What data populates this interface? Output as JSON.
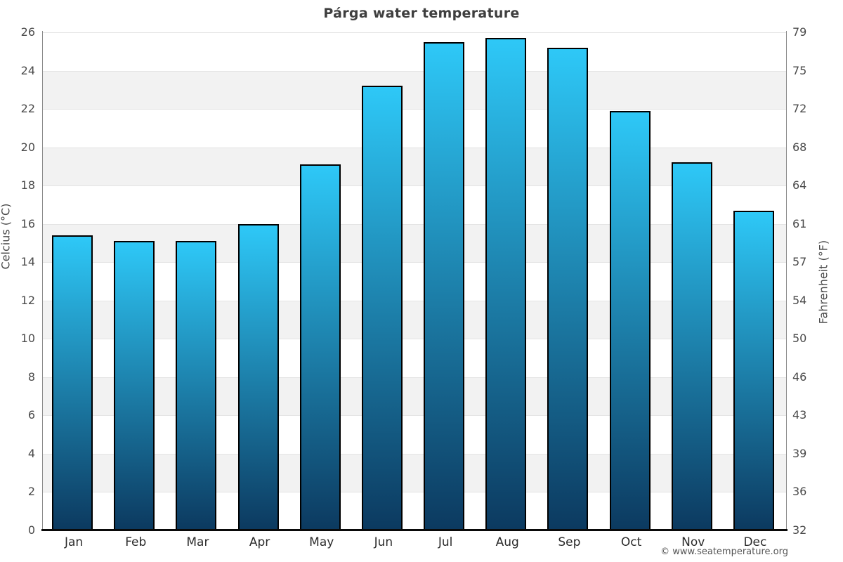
{
  "chart_data": {
    "type": "bar",
    "title": "Párga water temperature",
    "categories": [
      "Jan",
      "Feb",
      "Mar",
      "Apr",
      "May",
      "Jun",
      "Jul",
      "Aug",
      "Sep",
      "Oct",
      "Nov",
      "Dec"
    ],
    "values": [
      15.4,
      15.1,
      15.1,
      16.0,
      19.1,
      23.2,
      25.5,
      25.7,
      25.2,
      21.9,
      19.2,
      16.7
    ],
    "ylabel_left": "Celcius (°C)",
    "ylabel_right": "Fahrenheit (°F)",
    "xlabel": "",
    "ylim": [
      0,
      26
    ],
    "yticks_celsius": [
      0,
      2,
      4,
      6,
      8,
      10,
      12,
      14,
      16,
      18,
      20,
      22,
      24,
      26
    ],
    "yticks_fahrenheit": [
      32,
      36,
      39,
      43,
      46,
      50,
      54,
      57,
      61,
      64,
      68,
      72,
      75,
      79
    ],
    "gray_band_upper_values": [
      24,
      20,
      16,
      12,
      8,
      4
    ],
    "legend_position": "none",
    "grid": "horizontal",
    "copyright": "© www.seatemperature.org",
    "colors": {
      "bar_gradient_top": "#2ec8f7",
      "bar_gradient_bottom": "#0c3a60",
      "bar_border": "#000000",
      "band": "#f2f2f2",
      "gridline": "#e4e4e4",
      "axis_line": "#8c8c8c",
      "baseline": "#0a0a0a",
      "title_text": "#3f3f3f",
      "tick_text": "#4a4a4a",
      "month_text": "#2b2b2b",
      "copyright_text": "#555555"
    }
  }
}
